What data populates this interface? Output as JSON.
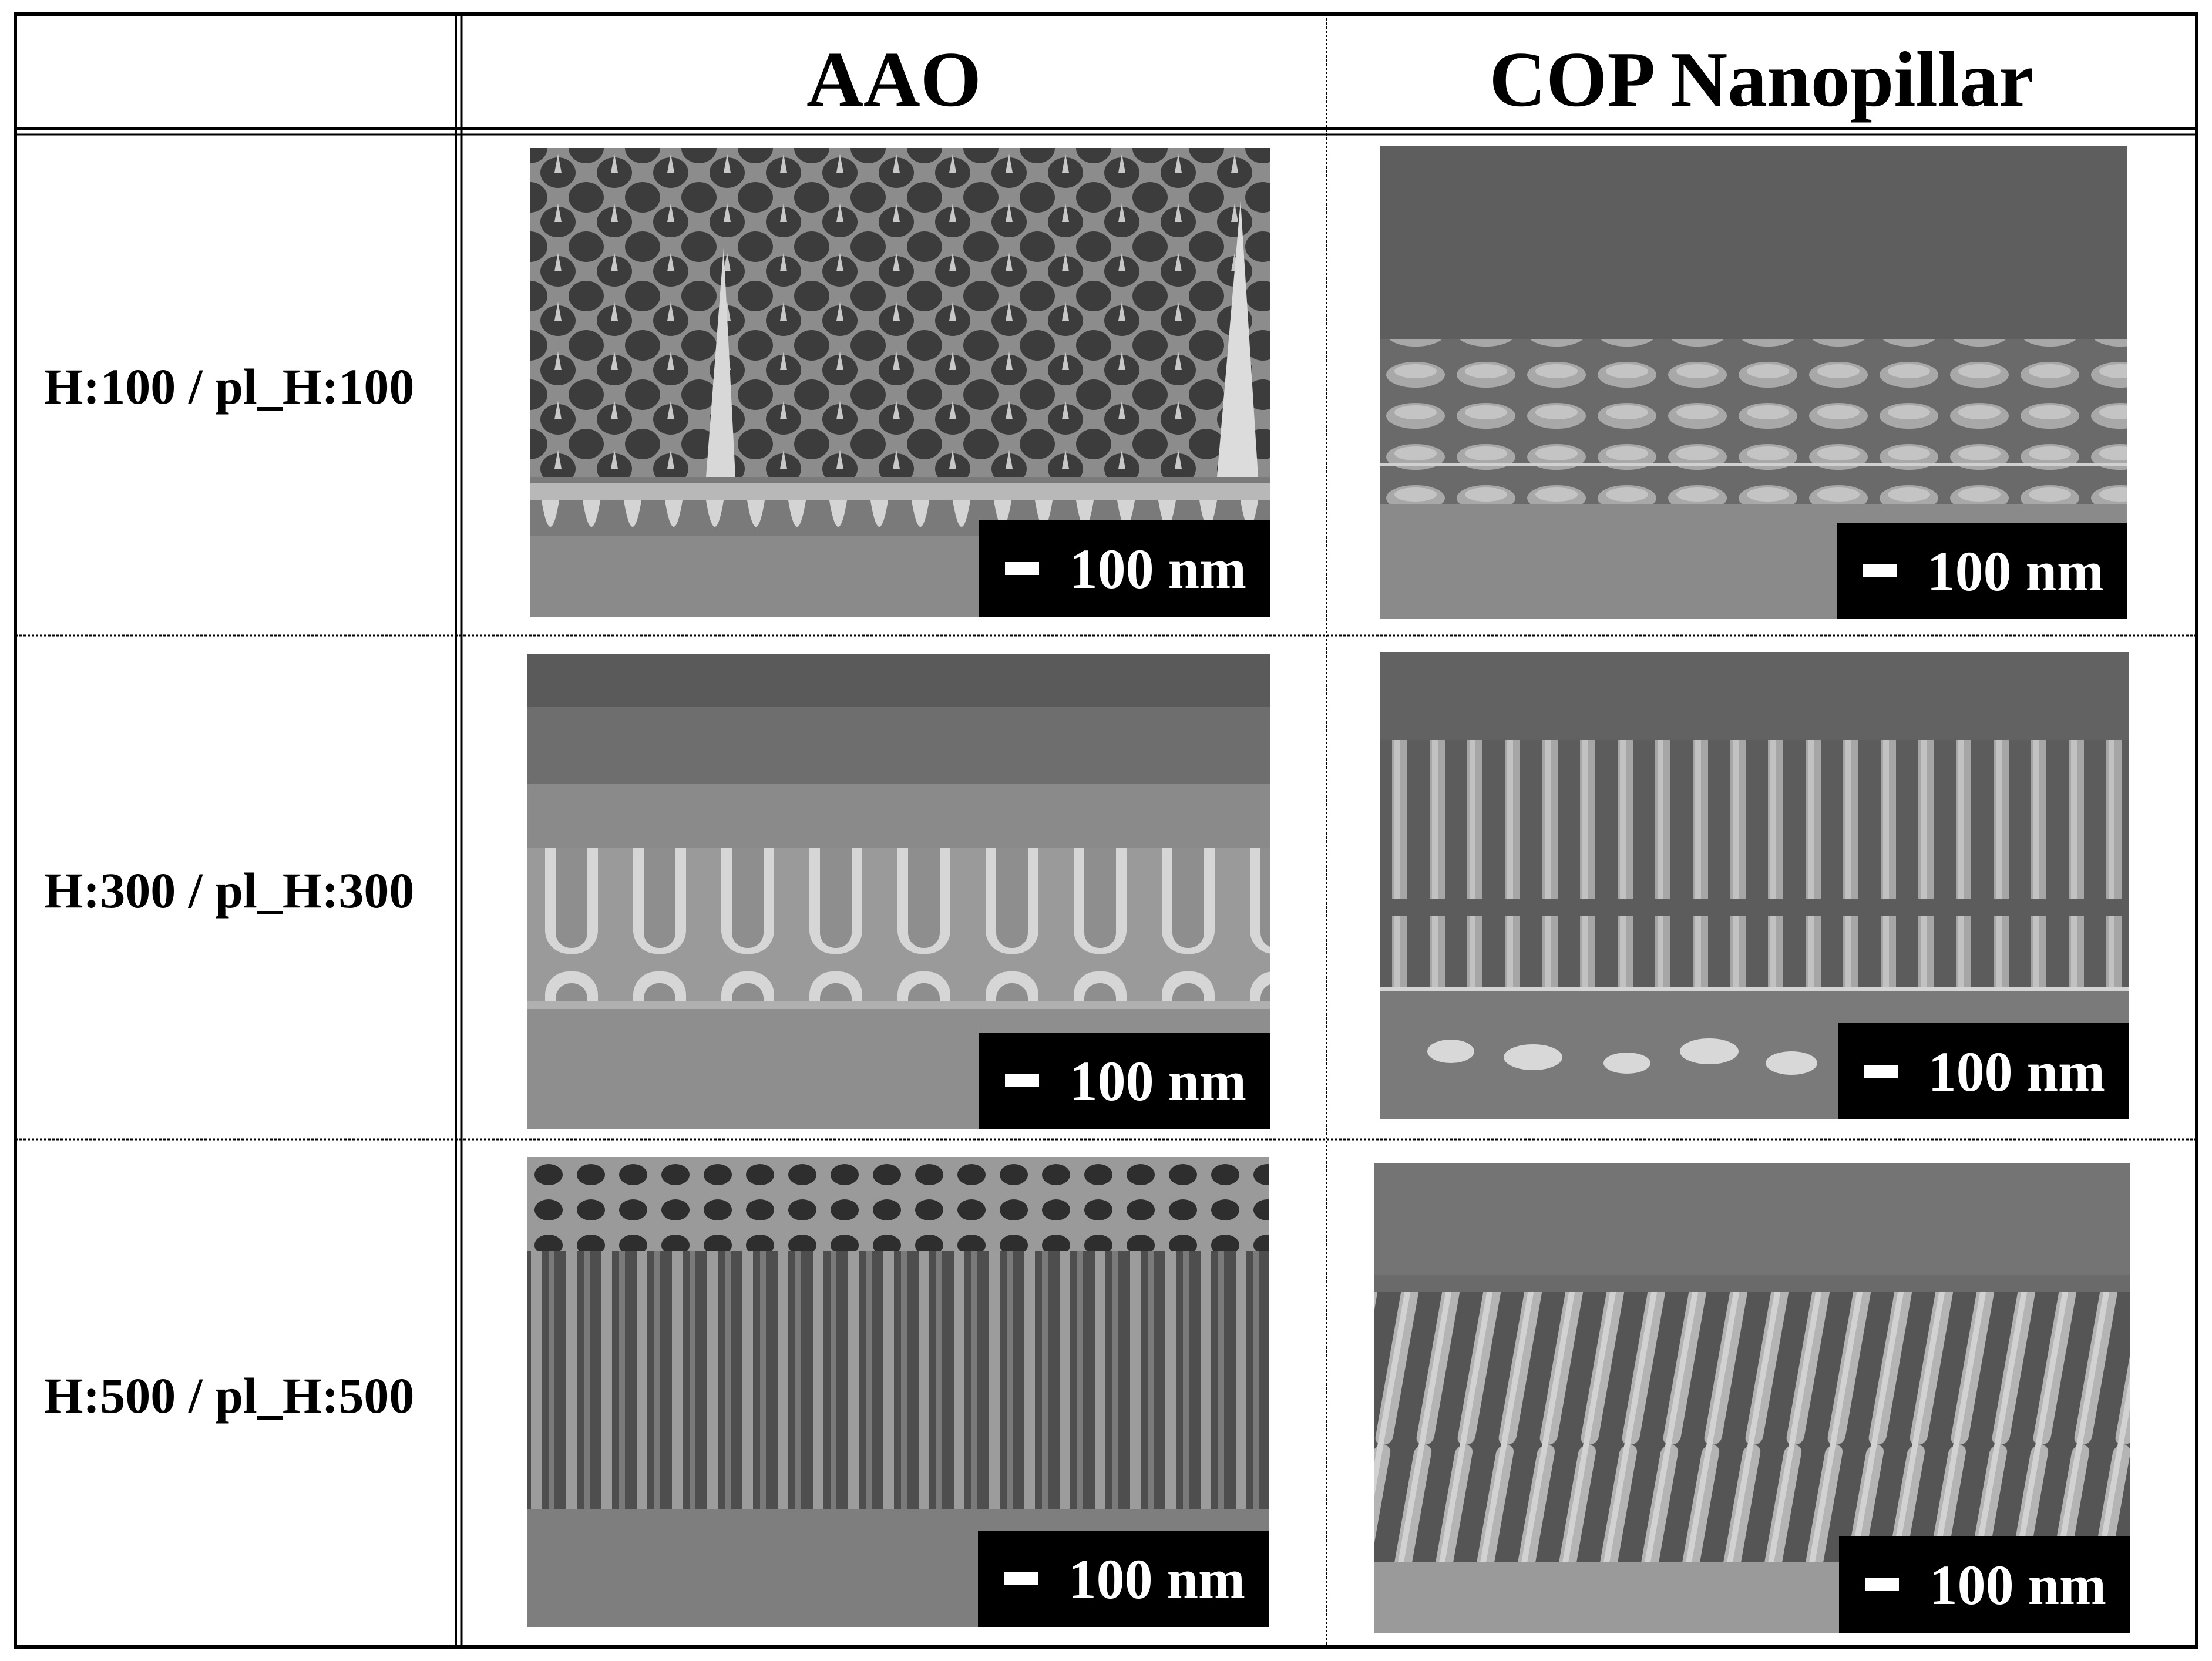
{
  "table": {
    "columns": [
      "AAO",
      "COP Nanopillar"
    ],
    "rows": [
      {
        "label": "H:100 / pl_H:100",
        "aao": {
          "scale": "100 nm"
        },
        "cop": {
          "scale": "100 nm"
        }
      },
      {
        "label": "H:300 / pl_H:300",
        "aao": {
          "scale": "100 nm"
        },
        "cop": {
          "scale": "100 nm"
        }
      },
      {
        "label": "H:500 / pl_H:500",
        "aao": {
          "scale": "100 nm"
        },
        "cop": {
          "scale": "100 nm"
        }
      }
    ]
  },
  "colors": {
    "border": "#000000",
    "background": "#ffffff",
    "sem_gray": "#8a8a8a"
  }
}
